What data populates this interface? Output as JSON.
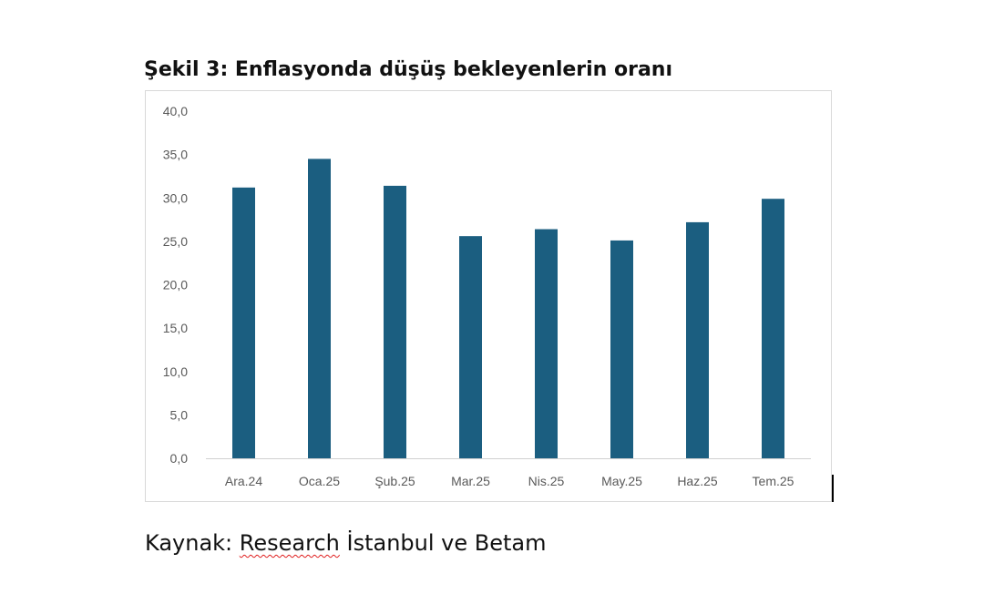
{
  "figure": {
    "title": "Şekil 3: Enflasyonda düşüş bekleyenlerin oranı"
  },
  "caption": {
    "prefix": "Kaynak: ",
    "source_word": "Research",
    "rest": " İstanbul ve Betam"
  },
  "chart_data": {
    "type": "bar",
    "categories": [
      "Ara.24",
      "Oca.25",
      "Şub.25",
      "Mar.25",
      "Nis.25",
      "May.25",
      "Haz.25",
      "Tem.25"
    ],
    "values": [
      31.2,
      34.5,
      31.4,
      25.6,
      26.4,
      25.1,
      27.2,
      29.9
    ],
    "y_ticks": [
      "0,0",
      "5,0",
      "10,0",
      "15,0",
      "20,0",
      "25,0",
      "30,0",
      "35,0",
      "40,0"
    ],
    "ylim": [
      0,
      40
    ],
    "grid": false,
    "legend": "none",
    "bar_color": "#1b5e80"
  }
}
